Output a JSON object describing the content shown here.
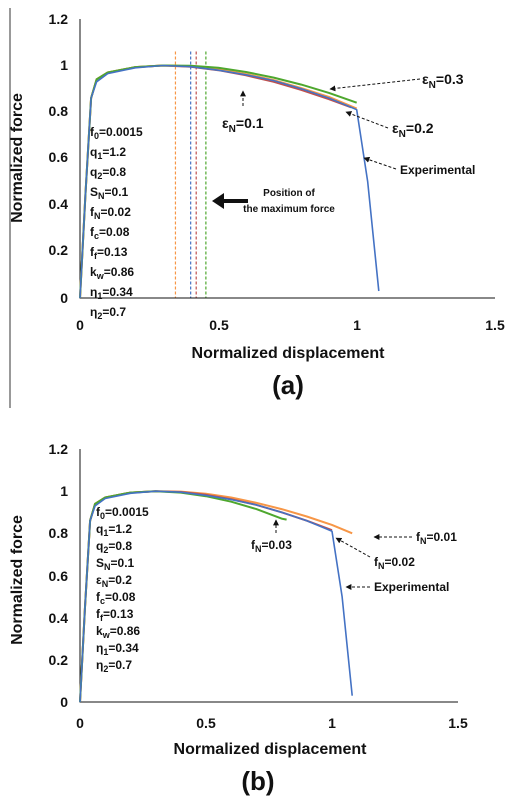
{
  "chart_data": [
    {
      "type": "line",
      "panel_label": "(a)",
      "xlabel": "Normalized displacement",
      "ylabel": "Normalized force",
      "xlim": [
        0,
        1.5
      ],
      "ylim": [
        0,
        1.2
      ],
      "x_ticks": [
        "0",
        "0.5",
        "1",
        "1.5"
      ],
      "y_ticks": [
        "0",
        "0.2",
        "0.4",
        "0.6",
        "0.8",
        "1",
        "1.2"
      ],
      "parameters": [
        "f0=0.0015",
        "q1=1.2",
        "q2=0.8",
        "SN=0.1",
        "fN=0.02",
        "fc=0.08",
        "ff=0.13",
        "kw=0.86",
        "η1=0.34",
        "η2=0.7"
      ],
      "series": [
        {
          "name": "Experimental",
          "color": "#4472c4",
          "points": [
            [
              0,
              0
            ],
            [
              0.02,
              0.45
            ],
            [
              0.04,
              0.86
            ],
            [
              0.06,
              0.93
            ],
            [
              0.1,
              0.965
            ],
            [
              0.2,
              0.99
            ],
            [
              0.3,
              1.0
            ],
            [
              0.4,
              0.995
            ],
            [
              0.5,
              0.98
            ],
            [
              0.6,
              0.96
            ],
            [
              0.7,
              0.935
            ],
            [
              0.8,
              0.9
            ],
            [
              0.9,
              0.86
            ],
            [
              0.98,
              0.82
            ],
            [
              1.0,
              0.81
            ],
            [
              1.04,
              0.5
            ],
            [
              1.08,
              0.03
            ]
          ]
        },
        {
          "name": "εN=0.1",
          "color": "#c0504d",
          "points": [
            [
              0,
              0
            ],
            [
              0.02,
              0.45
            ],
            [
              0.04,
              0.86
            ],
            [
              0.06,
              0.94
            ],
            [
              0.1,
              0.97
            ],
            [
              0.2,
              0.993
            ],
            [
              0.3,
              1.0
            ],
            [
              0.4,
              0.995
            ],
            [
              0.5,
              0.98
            ],
            [
              0.6,
              0.958
            ],
            [
              0.7,
              0.93
            ],
            [
              0.8,
              0.895
            ],
            [
              0.9,
              0.855
            ],
            [
              0.98,
              0.82
            ]
          ]
        },
        {
          "name": "εN=0.2",
          "color": "#f79646",
          "points": [
            [
              0,
              0
            ],
            [
              0.02,
              0.45
            ],
            [
              0.04,
              0.86
            ],
            [
              0.06,
              0.94
            ],
            [
              0.1,
              0.97
            ],
            [
              0.2,
              0.993
            ],
            [
              0.3,
              1.0
            ],
            [
              0.4,
              0.997
            ],
            [
              0.5,
              0.984
            ],
            [
              0.6,
              0.963
            ],
            [
              0.7,
              0.937
            ],
            [
              0.8,
              0.903
            ],
            [
              0.9,
              0.865
            ],
            [
              1.0,
              0.815
            ]
          ]
        },
        {
          "name": "εN=0.3",
          "color": "#4ea72e",
          "points": [
            [
              0,
              0
            ],
            [
              0.02,
              0.45
            ],
            [
              0.04,
              0.86
            ],
            [
              0.06,
              0.94
            ],
            [
              0.1,
              0.97
            ],
            [
              0.2,
              0.993
            ],
            [
              0.3,
              1.0
            ],
            [
              0.4,
              0.999
            ],
            [
              0.5,
              0.99
            ],
            [
              0.6,
              0.972
            ],
            [
              0.7,
              0.948
            ],
            [
              0.8,
              0.918
            ],
            [
              0.9,
              0.882
            ],
            [
              1.0,
              0.84
            ]
          ]
        }
      ],
      "vertical_lines": [
        {
          "x": 0.345,
          "color": "#f79646"
        },
        {
          "x": 0.4,
          "color": "#4472c4"
        },
        {
          "x": 0.42,
          "color": "#c0504d"
        },
        {
          "x": 0.455,
          "color": "#4ea72e"
        }
      ],
      "annotations": [
        "εN=0.3",
        "εN=0.1",
        "εN=0.2",
        "Experimental",
        "Position of",
        "the maximum force"
      ]
    },
    {
      "type": "line",
      "panel_label": "(b)",
      "xlabel": "Normalized displacement",
      "ylabel": "Normalized force",
      "xlim": [
        0,
        1.5
      ],
      "ylim": [
        0,
        1.2
      ],
      "x_ticks": [
        "0",
        "0.5",
        "1",
        "1.5"
      ],
      "y_ticks": [
        "0",
        "0.2",
        "0.4",
        "0.6",
        "0.8",
        "1",
        "1.2"
      ],
      "parameters": [
        "f0=0.0015",
        "q1=1.2",
        "q2=0.8",
        "SN=0.1",
        "εN=0.2",
        "fc=0.08",
        "ff=0.13",
        "kw=0.86",
        "η1=0.34",
        "η2=0.7"
      ],
      "series": [
        {
          "name": "Experimental",
          "color": "#4472c4",
          "points": [
            [
              0,
              0
            ],
            [
              0.02,
              0.45
            ],
            [
              0.04,
              0.86
            ],
            [
              0.06,
              0.93
            ],
            [
              0.1,
              0.965
            ],
            [
              0.2,
              0.99
            ],
            [
              0.3,
              1.0
            ],
            [
              0.4,
              0.995
            ],
            [
              0.5,
              0.98
            ],
            [
              0.6,
              0.96
            ],
            [
              0.7,
              0.935
            ],
            [
              0.8,
              0.9
            ],
            [
              0.9,
              0.86
            ],
            [
              0.98,
              0.82
            ],
            [
              1.0,
              0.81
            ],
            [
              1.04,
              0.5
            ],
            [
              1.08,
              0.03
            ]
          ]
        },
        {
          "name": "fN=0.01",
          "color": "#f79646",
          "points": [
            [
              0,
              0
            ],
            [
              0.02,
              0.45
            ],
            [
              0.04,
              0.86
            ],
            [
              0.06,
              0.94
            ],
            [
              0.1,
              0.97
            ],
            [
              0.2,
              0.993
            ],
            [
              0.3,
              1.0
            ],
            [
              0.4,
              0.998
            ],
            [
              0.5,
              0.988
            ],
            [
              0.6,
              0.97
            ],
            [
              0.7,
              0.945
            ],
            [
              0.8,
              0.915
            ],
            [
              0.9,
              0.88
            ],
            [
              1.0,
              0.84
            ],
            [
              1.08,
              0.8
            ]
          ]
        },
        {
          "name": "fN=0.02",
          "color": "#c0504d",
          "points": [
            [
              0,
              0
            ],
            [
              0.02,
              0.45
            ],
            [
              0.04,
              0.86
            ],
            [
              0.06,
              0.94
            ],
            [
              0.1,
              0.97
            ],
            [
              0.2,
              0.993
            ],
            [
              0.3,
              1.0
            ],
            [
              0.4,
              0.996
            ],
            [
              0.5,
              0.983
            ],
            [
              0.6,
              0.962
            ],
            [
              0.7,
              0.935
            ],
            [
              0.8,
              0.9
            ],
            [
              0.9,
              0.86
            ],
            [
              1.0,
              0.815
            ]
          ]
        },
        {
          "name": "fN=0.03",
          "color": "#4ea72e",
          "points": [
            [
              0,
              0
            ],
            [
              0.02,
              0.45
            ],
            [
              0.04,
              0.86
            ],
            [
              0.06,
              0.94
            ],
            [
              0.1,
              0.97
            ],
            [
              0.2,
              0.993
            ],
            [
              0.3,
              1.0
            ],
            [
              0.4,
              0.993
            ],
            [
              0.5,
              0.976
            ],
            [
              0.6,
              0.95
            ],
            [
              0.7,
              0.915
            ],
            [
              0.8,
              0.87
            ],
            [
              0.82,
              0.865
            ]
          ]
        }
      ],
      "annotations": [
        "fN=0.01",
        "fN=0.02",
        "fN=0.03",
        "Experimental"
      ]
    }
  ]
}
